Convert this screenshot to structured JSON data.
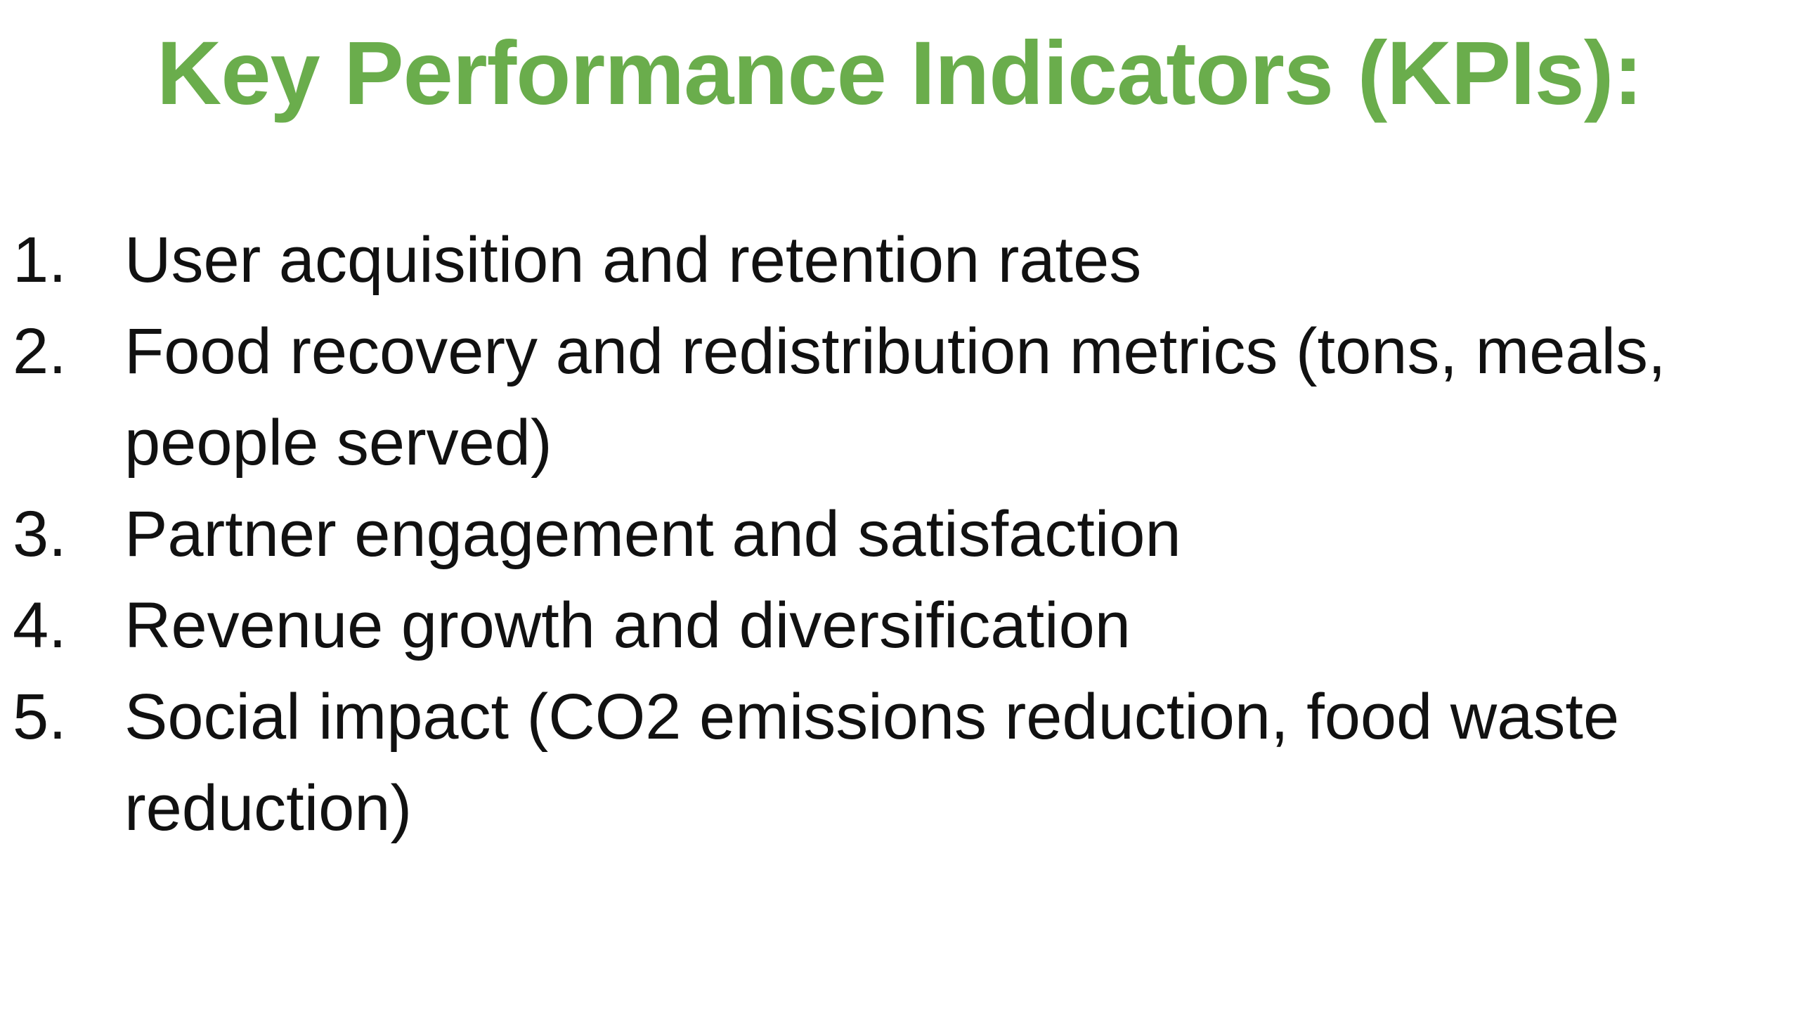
{
  "title": "Key Performance Indicators (KPIs):",
  "title_color": "#6aad4c",
  "text_color": "#111111",
  "items": [
    {
      "number": "1.",
      "lines": [
        "User acquisition and retention rates"
      ]
    },
    {
      "number": "2.",
      "lines": [
        "Food recovery and redistribution metrics (tons, meals,",
        "people served)"
      ]
    },
    {
      "number": "3.",
      "lines": [
        "Partner engagement and satisfaction"
      ]
    },
    {
      "number": "4.",
      "lines": [
        "Revenue growth and diversification"
      ]
    },
    {
      "number": "5.",
      "lines": [
        "Social impact (CO2 emissions reduction, food waste",
        "reduction)"
      ]
    }
  ]
}
